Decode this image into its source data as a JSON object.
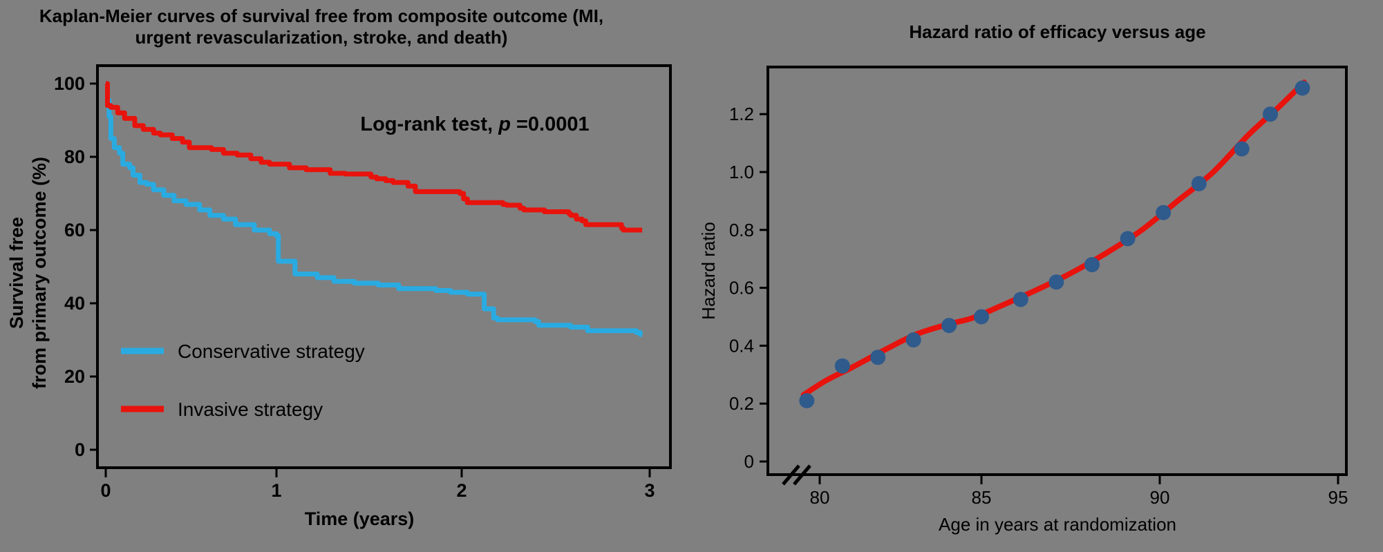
{
  "background_color": "#808080",
  "colors": {
    "axis": "#000000",
    "conservative_line": "#29ABE2",
    "invasive_line": "#E8130C",
    "hr_fit_line": "#E8130C",
    "hr_dots": "#2F5A8C"
  },
  "chart_data": [
    {
      "type": "line",
      "subtype": "kaplan-meier-step",
      "title": "Kaplan-Meier curves of survival free from composite outcome (MI, urgent revascularization, stroke, and death)",
      "title_lines": [
        "Kaplan-Meier curves of survival free from composite outcome (MI,",
        "urgent revascularization, stroke, and death)"
      ],
      "xlabel": "Time (years)",
      "ylabel_lines": [
        "Survival free",
        "from primary outcome (%)"
      ],
      "annotation": {
        "prefix": "Log-rank test, ",
        "italic": "p",
        "suffix": " =0.0001"
      },
      "xlim": [
        0,
        3.05
      ],
      "ylim": [
        0,
        100
      ],
      "grid": false,
      "legend_position": "inside-lower-left",
      "xticks": {
        "values": [
          0,
          1,
          2,
          3
        ],
        "labels": [
          "0",
          "1",
          "2",
          "3"
        ]
      },
      "yticks": {
        "values": [
          100,
          80,
          60,
          40,
          20,
          0
        ],
        "labels": [
          "100",
          "80",
          "60",
          "40",
          "20",
          "0"
        ]
      },
      "series": [
        {
          "name": "Conservative strategy",
          "color": "#29ABE2",
          "points": [
            [
              0,
              100
            ],
            [
              0.01,
              95.5
            ],
            [
              0.02,
              91
            ],
            [
              0.03,
              85
            ],
            [
              0.05,
              82.5
            ],
            [
              0.08,
              81
            ],
            [
              0.1,
              78
            ],
            [
              0.14,
              77
            ],
            [
              0.16,
              75
            ],
            [
              0.2,
              73
            ],
            [
              0.24,
              72.5
            ],
            [
              0.28,
              71
            ],
            [
              0.34,
              69.5
            ],
            [
              0.4,
              68
            ],
            [
              0.47,
              67
            ],
            [
              0.55,
              65.5
            ],
            [
              0.61,
              64
            ],
            [
              0.69,
              63
            ],
            [
              0.76,
              61.5
            ],
            [
              0.87,
              60
            ],
            [
              0.96,
              59
            ],
            [
              1.0,
              58.5
            ],
            [
              1.01,
              51.5
            ],
            [
              1.1,
              48
            ],
            [
              1.22,
              47
            ],
            [
              1.31,
              46
            ],
            [
              1.42,
              45.5
            ],
            [
              1.55,
              45
            ],
            [
              1.66,
              44
            ],
            [
              1.86,
              43.5
            ],
            [
              1.94,
              43
            ],
            [
              2.03,
              42.5
            ],
            [
              2.12,
              38.5
            ],
            [
              2.17,
              36
            ],
            [
              2.19,
              35.5
            ],
            [
              2.39,
              35
            ],
            [
              2.41,
              34
            ],
            [
              2.58,
              33.5
            ],
            [
              2.67,
              32.5
            ],
            [
              2.93,
              32
            ],
            [
              2.95,
              31.5
            ],
            [
              2.96,
              31.5
            ]
          ]
        },
        {
          "name": "Invasive strategy",
          "color": "#E8130C",
          "points": [
            [
              0,
              100
            ],
            [
              0.01,
              94
            ],
            [
              0.03,
              93.5
            ],
            [
              0.07,
              92
            ],
            [
              0.11,
              90.5
            ],
            [
              0.17,
              88.5
            ],
            [
              0.22,
              87.5
            ],
            [
              0.28,
              86.5
            ],
            [
              0.32,
              86
            ],
            [
              0.39,
              85
            ],
            [
              0.45,
              84
            ],
            [
              0.49,
              82.5
            ],
            [
              0.6,
              82.5
            ],
            [
              0.62,
              82
            ],
            [
              0.69,
              81
            ],
            [
              0.77,
              80.5
            ],
            [
              0.85,
              79.5
            ],
            [
              0.91,
              78.5
            ],
            [
              0.96,
              78
            ],
            [
              1.07,
              77
            ],
            [
              1.16,
              76.5
            ],
            [
              1.29,
              75.5
            ],
            [
              1.37,
              75.3
            ],
            [
              1.51,
              74.5
            ],
            [
              1.54,
              74
            ],
            [
              1.59,
              73.5
            ],
            [
              1.63,
              73
            ],
            [
              1.71,
              72
            ],
            [
              1.75,
              70.5
            ],
            [
              1.99,
              70
            ],
            [
              2.01,
              68.5
            ],
            [
              2.03,
              67.5
            ],
            [
              2.22,
              67
            ],
            [
              2.24,
              66.8
            ],
            [
              2.31,
              66
            ],
            [
              2.33,
              65.5
            ],
            [
              2.44,
              65
            ],
            [
              2.57,
              64.5
            ],
            [
              2.58,
              64
            ],
            [
              2.61,
              63
            ],
            [
              2.64,
              62.5
            ],
            [
              2.66,
              61.5
            ],
            [
              2.85,
              60.5
            ],
            [
              2.86,
              60
            ],
            [
              2.96,
              60
            ]
          ]
        }
      ]
    },
    {
      "type": "scatter",
      "title": "Hazard ratio of efficacy versus age",
      "xlabel": "Age in years at randomization",
      "ylabel": "Hazard ratio",
      "xlim": [
        79,
        95.2
      ],
      "ylim": [
        0,
        1.35
      ],
      "grid": false,
      "axis_break_on_x": true,
      "xticks": {
        "values": [
          80,
          85,
          90,
          95
        ],
        "labels": [
          "80",
          "85",
          "90",
          "95"
        ]
      },
      "yticks": {
        "values": [
          0,
          0.2,
          0.4,
          0.6,
          0.8,
          1.0,
          1.2
        ],
        "labels": [
          "0",
          "0.2",
          "0.4",
          "0.6",
          "0.8",
          "1.0",
          "1.2"
        ]
      },
      "points": {
        "color": "#2F5A8C",
        "ages": [
          79.6,
          80.7,
          81.8,
          82.9,
          84.0,
          85.0,
          86.1,
          87.1,
          88.1,
          89.1,
          90.1,
          91.1,
          92.3,
          93.1,
          94.0
        ],
        "hazard_ratios": [
          0.21,
          0.33,
          0.36,
          0.42,
          0.47,
          0.5,
          0.56,
          0.62,
          0.68,
          0.77,
          0.86,
          0.96,
          1.08,
          1.2,
          1.29
        ]
      },
      "fit_curve": {
        "color": "#E8130C",
        "points": [
          [
            79.5,
            0.23
          ],
          [
            80.2,
            0.28
          ],
          [
            81,
            0.325
          ],
          [
            82,
            0.385
          ],
          [
            83,
            0.44
          ],
          [
            84,
            0.475
          ],
          [
            84.7,
            0.495
          ],
          [
            85.5,
            0.535
          ],
          [
            86.5,
            0.59
          ],
          [
            87.5,
            0.65
          ],
          [
            88.5,
            0.72
          ],
          [
            89.5,
            0.8
          ],
          [
            90.5,
            0.9
          ],
          [
            91.5,
            1.0
          ],
          [
            92.5,
            1.13
          ],
          [
            93.3,
            1.22
          ],
          [
            94.05,
            1.31
          ]
        ]
      }
    }
  ]
}
